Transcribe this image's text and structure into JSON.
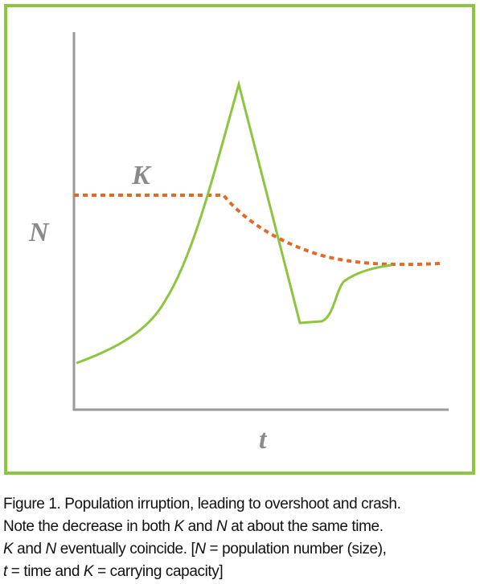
{
  "labels": {
    "y_axis": "N",
    "x_axis": "t",
    "k_curve": "K"
  },
  "caption": {
    "lines": [
      [
        "Figure 1. Population irruption, leading to overshoot and crash."
      ],
      [
        "Note the decrease in both ",
        "K",
        " and ",
        "N",
        " at about the same time."
      ],
      [
        "K",
        " and ",
        "N",
        " eventually coincide. [",
        "N",
        " = population number (size),"
      ],
      [
        "t",
        " = time and ",
        "K",
        " = carrying capacity]"
      ]
    ]
  }
}
